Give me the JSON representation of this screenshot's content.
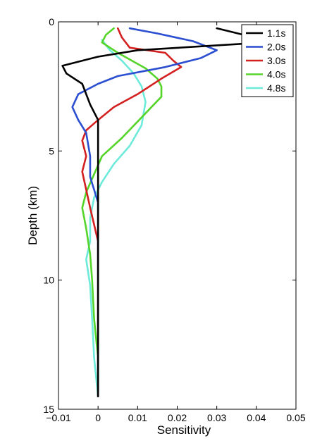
{
  "chart_data": {
    "type": "line",
    "orientation": "depth-profile",
    "title": "",
    "xlabel": "Sensitivity",
    "ylabel": "Depth (km)",
    "xlim": [
      -0.01,
      0.05
    ],
    "ylim": [
      0,
      15
    ],
    "y_reversed": true,
    "grid": false,
    "legend_position": "top-right",
    "x_ticks": [
      -0.01,
      0,
      0.01,
      0.02,
      0.03,
      0.04,
      0.05
    ],
    "x_tick_labels": [
      "−0.01",
      "0",
      "0.01",
      "0.02",
      "0.03",
      "0.04",
      "0.05"
    ],
    "y_ticks": [
      0,
      5,
      10,
      15
    ],
    "y_tick_labels": [
      "0",
      "5",
      "10",
      "15"
    ],
    "series": [
      {
        "name": "1.1s",
        "color": "#000000",
        "points": [
          [
            0.03,
            0.25
          ],
          [
            0.038,
            0.55
          ],
          [
            0.042,
            0.8
          ],
          [
            0.01,
            1.1
          ],
          [
            0.0,
            1.35
          ],
          [
            -0.009,
            1.7
          ],
          [
            -0.008,
            2.0
          ],
          [
            -0.004,
            2.4
          ],
          [
            -0.003,
            2.8
          ],
          [
            -0.002,
            3.2
          ],
          [
            0.0,
            3.8
          ],
          [
            0.0,
            5.0
          ],
          [
            0.0,
            8.0
          ],
          [
            0.0,
            11.0
          ],
          [
            0.0,
            14.5
          ]
        ]
      },
      {
        "name": "2.0s",
        "color": "#2B4FD0",
        "points": [
          [
            0.008,
            0.25
          ],
          [
            0.015,
            0.45
          ],
          [
            0.024,
            0.75
          ],
          [
            0.03,
            1.1
          ],
          [
            0.026,
            1.4
          ],
          [
            0.017,
            1.75
          ],
          [
            0.005,
            2.1
          ],
          [
            0.0,
            2.4
          ],
          [
            -0.005,
            2.8
          ],
          [
            -0.0065,
            3.3
          ],
          [
            -0.005,
            3.8
          ],
          [
            -0.003,
            4.3
          ],
          [
            -0.002,
            5.2
          ],
          [
            -0.002,
            6.0
          ],
          [
            0.0,
            7.0
          ],
          [
            0.0,
            8.5
          ],
          [
            0.0,
            10.0
          ],
          [
            0.0,
            14.5
          ]
        ]
      },
      {
        "name": "3.0s",
        "color": "#D42020",
        "points": [
          [
            0.005,
            0.25
          ],
          [
            0.006,
            0.6
          ],
          [
            0.008,
            1.0
          ],
          [
            0.017,
            1.2
          ],
          [
            0.019,
            1.5
          ],
          [
            0.021,
            1.75
          ],
          [
            0.016,
            2.2
          ],
          [
            0.01,
            2.8
          ],
          [
            0.004,
            3.3
          ],
          [
            0.0,
            3.8
          ],
          [
            -0.003,
            4.2
          ],
          [
            -0.004,
            4.6
          ],
          [
            -0.003,
            5.2
          ],
          [
            -0.004,
            5.8
          ],
          [
            -0.003,
            6.5
          ],
          [
            -0.002,
            7.2
          ],
          [
            0.0,
            8.5
          ],
          [
            0.0,
            10.0
          ],
          [
            0.0,
            12.0
          ],
          [
            0.0,
            14.5
          ]
        ]
      },
      {
        "name": "4.0s",
        "color": "#55D42A",
        "points": [
          [
            0.004,
            0.25
          ],
          [
            0.002,
            0.5
          ],
          [
            0.001,
            0.8
          ],
          [
            0.005,
            1.2
          ],
          [
            0.012,
            1.8
          ],
          [
            0.015,
            2.2
          ],
          [
            0.016,
            2.5
          ],
          [
            0.016,
            2.9
          ],
          [
            0.011,
            3.7
          ],
          [
            0.006,
            4.5
          ],
          [
            0.001,
            5.2
          ],
          [
            -0.001,
            5.9
          ],
          [
            -0.003,
            6.6
          ],
          [
            -0.004,
            7.2
          ],
          [
            -0.003,
            8.0
          ],
          [
            -0.002,
            9.0
          ],
          [
            -0.0015,
            10.0
          ],
          [
            -0.001,
            11.5
          ],
          [
            0.0,
            13.0
          ],
          [
            0.0,
            14.5
          ]
        ]
      },
      {
        "name": "4.8s",
        "color": "#6EEADB",
        "points": [
          [
            0.001,
            0.7
          ],
          [
            0.003,
            1.1
          ],
          [
            0.006,
            1.5
          ],
          [
            0.009,
            2.0
          ],
          [
            0.011,
            2.5
          ],
          [
            0.012,
            3.1
          ],
          [
            0.011,
            4.0
          ],
          [
            0.008,
            4.8
          ],
          [
            0.004,
            5.5
          ],
          [
            0.001,
            6.2
          ],
          [
            -0.001,
            6.8
          ],
          [
            -0.002,
            7.6
          ],
          [
            -0.002,
            8.5
          ],
          [
            -0.003,
            9.2
          ],
          [
            -0.002,
            10.2
          ],
          [
            -0.0015,
            11.5
          ],
          [
            -0.001,
            13.0
          ],
          [
            0.0,
            14.5
          ]
        ]
      }
    ]
  }
}
